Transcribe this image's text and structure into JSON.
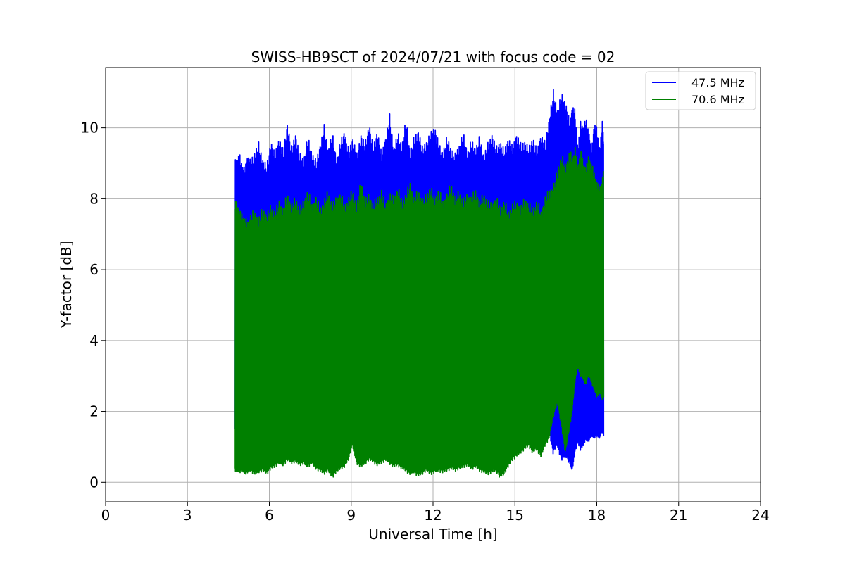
{
  "chart_data": {
    "type": "line",
    "title": "SWISS-HB9SCT of 2024/07/21 with focus code = 02",
    "xlabel": "Universal Time [h]",
    "ylabel": "Y-factor [dB]",
    "xlim": [
      0,
      24
    ],
    "ylim": [
      -0.55,
      11.7
    ],
    "xticks": [
      0,
      3,
      6,
      9,
      12,
      15,
      18,
      21,
      24
    ],
    "yticks": [
      0,
      2,
      4,
      6,
      8,
      10
    ],
    "grid": true,
    "legend_position": "top-right",
    "series": [
      {
        "name": "47.5 MHz",
        "color": "#0000ff",
        "x": [
          4.75,
          4.82,
          4.9,
          5.0,
          5.1,
          5.2,
          5.3,
          5.45,
          5.6,
          5.75,
          5.9,
          6.05,
          6.2,
          6.35,
          6.5,
          6.65,
          6.8,
          6.95,
          7.1,
          7.25,
          7.4,
          7.55,
          7.7,
          7.85,
          8.0,
          8.15,
          8.3,
          8.45,
          8.6,
          8.75,
          8.9,
          9.05,
          9.2,
          9.35,
          9.5,
          9.65,
          9.8,
          9.95,
          10.1,
          10.25,
          10.4,
          10.55,
          10.7,
          10.85,
          11.0,
          11.15,
          11.3,
          11.45,
          11.6,
          11.75,
          11.9,
          12.05,
          12.2,
          12.35,
          12.5,
          12.65,
          12.8,
          12.95,
          13.1,
          13.25,
          13.4,
          13.55,
          13.7,
          13.85,
          14.0,
          14.15,
          14.3,
          14.45,
          14.6,
          14.75,
          14.9,
          15.05,
          15.2,
          15.35,
          15.5,
          15.65,
          15.8,
          15.95,
          16.1,
          16.25,
          16.4,
          16.55,
          16.7,
          16.85,
          17.0,
          17.1,
          17.2,
          17.3,
          17.4,
          17.5,
          17.6,
          17.7,
          17.8,
          17.9,
          18.0,
          18.1,
          18.2,
          18.25
        ],
        "peaks": [
          9.1,
          9.2,
          9.3,
          9.0,
          8.9,
          9.3,
          9.1,
          9.4,
          9.6,
          9.2,
          9.0,
          9.7,
          9.3,
          9.8,
          9.4,
          10.2,
          9.5,
          9.9,
          9.3,
          9.2,
          9.8,
          9.4,
          9.1,
          9.6,
          10.1,
          9.5,
          9.9,
          9.2,
          9.7,
          10.0,
          9.4,
          9.8,
          9.3,
          9.9,
          9.6,
          10.2,
          9.5,
          10.0,
          9.3,
          9.8,
          10.4,
          9.5,
          9.9,
          9.6,
          10.3,
          9.4,
          9.8,
          10.0,
          9.5,
          9.7,
          9.9,
          10.1,
          9.6,
          9.4,
          9.8,
          9.5,
          9.3,
          9.6,
          9.9,
          9.4,
          9.7,
          9.5,
          9.8,
          9.3,
          9.6,
          9.9,
          9.5,
          9.7,
          9.4,
          9.8,
          9.5,
          9.9,
          9.6,
          9.7,
          9.5,
          9.8,
          9.4,
          9.9,
          9.6,
          10.4,
          11.1,
          10.6,
          11.0,
          10.8,
          10.2,
          10.7,
          10.5,
          9.5,
          10.2,
          10.1,
          10.3,
          10.0,
          9.4,
          10.2,
          10.0,
          9.5,
          10.2,
          9.8
        ],
        "troughs": [
          1.5,
          1.4,
          1.6,
          1.5,
          1.4,
          1.6,
          1.5,
          1.4,
          1.5,
          1.6,
          1.5,
          1.4,
          1.5,
          1.6,
          1.4,
          1.5,
          1.6,
          1.5,
          1.4,
          1.6,
          1.5,
          1.4,
          1.5,
          1.6,
          1.5,
          1.4,
          1.5,
          1.6,
          1.5,
          1.4,
          1.6,
          1.5,
          1.4,
          1.5,
          1.6,
          1.5,
          1.4,
          1.5,
          1.6,
          1.5,
          1.4,
          1.5,
          1.6,
          1.5,
          1.4,
          1.5,
          1.6,
          1.5,
          1.4,
          1.5,
          1.6,
          1.5,
          1.4,
          1.5,
          1.3,
          1.4,
          1.5,
          1.3,
          1.4,
          1.5,
          1.4,
          1.3,
          1.5,
          1.4,
          1.3,
          1.4,
          1.5,
          1.3,
          1.4,
          1.5,
          1.3,
          1.4,
          1.5,
          1.3,
          1.4,
          1.5,
          1.3,
          1.2,
          1.5,
          1.4,
          0.8,
          1.0,
          0.6,
          0.7,
          0.5,
          0.3,
          0.8,
          1.1,
          0.9,
          1.0,
          1.2,
          1.1,
          1.3,
          1.2,
          1.3,
          1.2,
          1.4,
          1.3
        ]
      },
      {
        "name": "70.6 MHz",
        "color": "#008000",
        "x": [
          4.75,
          4.82,
          4.9,
          5.0,
          5.1,
          5.2,
          5.3,
          5.45,
          5.6,
          5.75,
          5.9,
          6.05,
          6.2,
          6.35,
          6.5,
          6.65,
          6.8,
          6.95,
          7.1,
          7.25,
          7.4,
          7.55,
          7.7,
          7.85,
          8.0,
          8.15,
          8.3,
          8.45,
          8.6,
          8.75,
          8.9,
          9.05,
          9.2,
          9.35,
          9.5,
          9.65,
          9.8,
          9.95,
          10.1,
          10.25,
          10.4,
          10.55,
          10.7,
          10.85,
          11.0,
          11.15,
          11.3,
          11.45,
          11.6,
          11.75,
          11.9,
          12.05,
          12.2,
          12.35,
          12.5,
          12.65,
          12.8,
          12.95,
          13.1,
          13.25,
          13.4,
          13.55,
          13.7,
          13.85,
          14.0,
          14.15,
          14.3,
          14.45,
          14.6,
          14.75,
          14.9,
          15.05,
          15.2,
          15.35,
          15.5,
          15.65,
          15.8,
          15.95,
          16.1,
          16.25,
          16.4,
          16.55,
          16.7,
          16.85,
          17.0,
          17.1,
          17.2,
          17.3,
          17.4,
          17.5,
          17.6,
          17.7,
          17.8,
          17.9,
          18.0,
          18.1,
          18.2,
          18.25
        ],
        "peaks": [
          8.0,
          7.9,
          7.7,
          7.6,
          7.5,
          7.4,
          7.6,
          7.7,
          7.5,
          7.8,
          7.6,
          7.9,
          7.7,
          8.0,
          7.8,
          8.2,
          7.9,
          8.1,
          7.8,
          8.0,
          8.3,
          7.9,
          8.1,
          7.8,
          8.0,
          8.3,
          7.9,
          8.1,
          8.2,
          7.9,
          8.1,
          8.3,
          7.9,
          8.6,
          8.0,
          8.2,
          7.9,
          8.1,
          8.3,
          7.9,
          8.2,
          8.1,
          8.4,
          8.0,
          8.2,
          8.5,
          8.1,
          8.3,
          8.0,
          8.2,
          8.4,
          8.1,
          8.3,
          8.0,
          8.2,
          8.5,
          8.1,
          8.3,
          8.0,
          8.2,
          8.1,
          8.3,
          8.0,
          8.2,
          8.0,
          7.9,
          8.1,
          7.8,
          8.0,
          7.7,
          7.9,
          8.0,
          7.8,
          8.1,
          7.9,
          7.8,
          8.0,
          7.7,
          8.1,
          8.3,
          8.4,
          8.9,
          9.3,
          9.0,
          9.4,
          9.2,
          9.5,
          9.0,
          9.4,
          9.1,
          8.9,
          9.3,
          9.0,
          8.8,
          8.5,
          8.4,
          8.6,
          8.9
        ],
        "troughs": [
          0.3,
          0.3,
          0.25,
          0.3,
          0.2,
          0.25,
          0.3,
          0.2,
          0.25,
          0.3,
          0.2,
          0.35,
          0.4,
          0.5,
          0.45,
          0.6,
          0.5,
          0.55,
          0.45,
          0.5,
          0.4,
          0.5,
          0.35,
          0.3,
          0.2,
          0.3,
          0.1,
          0.25,
          0.35,
          0.4,
          0.6,
          1.0,
          0.5,
          0.4,
          0.5,
          0.6,
          0.55,
          0.45,
          0.5,
          0.6,
          0.5,
          0.4,
          0.45,
          0.35,
          0.3,
          0.2,
          0.25,
          0.15,
          0.2,
          0.3,
          0.2,
          0.25,
          0.3,
          0.25,
          0.3,
          0.35,
          0.3,
          0.35,
          0.4,
          0.45,
          0.35,
          0.4,
          0.3,
          0.25,
          0.2,
          0.25,
          0.3,
          0.1,
          0.2,
          0.4,
          0.6,
          0.7,
          0.8,
          0.9,
          1.0,
          0.8,
          0.9,
          0.7,
          1.0,
          1.2,
          1.8,
          2.2,
          1.6,
          0.8,
          1.5,
          2.0,
          2.8,
          3.2,
          3.0,
          2.9,
          2.7,
          3.0,
          2.8,
          2.6,
          2.4,
          2.5,
          2.3,
          2.4
        ]
      }
    ]
  }
}
